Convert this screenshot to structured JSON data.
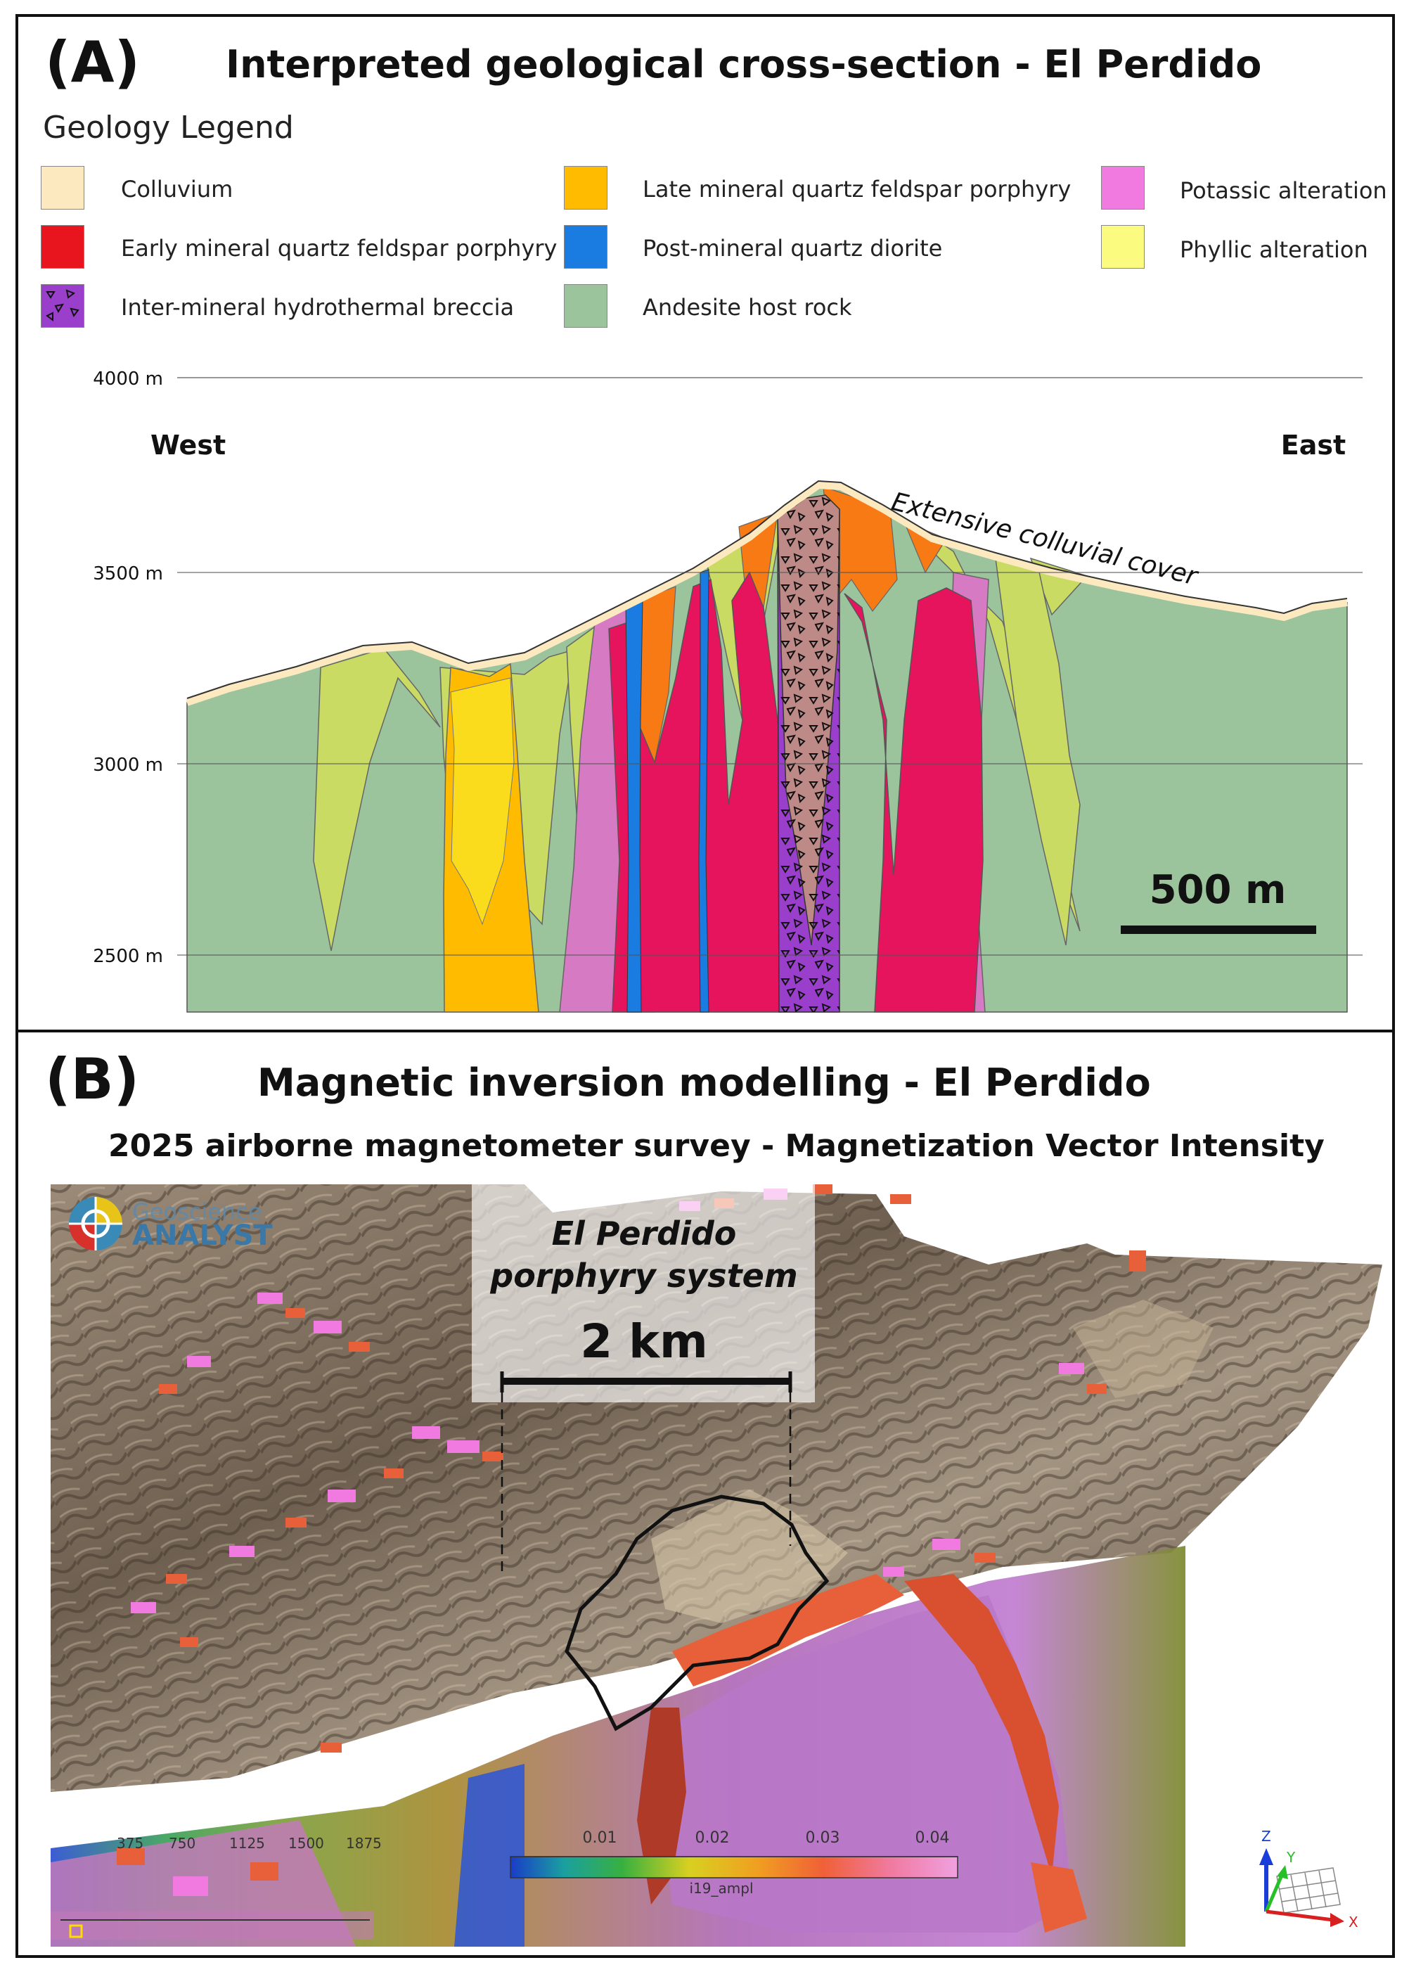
{
  "panel_a": {
    "label": "(A)",
    "title": "Interpreted geological cross-section - El Perdido",
    "legend_title": "Geology Legend",
    "legend": [
      {
        "label": "Colluvium",
        "color": "#fde9c0"
      },
      {
        "label": "Early mineral quartz feldspar porphyry",
        "color": "#e8141e"
      },
      {
        "label": "Inter-mineral hydrothermal breccia",
        "color": "#9a3fcc"
      },
      {
        "label": "Late mineral quartz feldspar porphyry",
        "color": "#ffbb00"
      },
      {
        "label": "Post-mineral quartz diorite",
        "color": "#1a7be0"
      },
      {
        "label": "Andesite host rock",
        "color": "#9cc49c"
      },
      {
        "label": "Potassic alteration",
        "color": "#f07ae0"
      },
      {
        "label": "Phyllic alteration",
        "color": "#fbfb80"
      }
    ],
    "elevation_labels": [
      "4000 m",
      "3500 m",
      "3000 m",
      "2500 m"
    ],
    "west_label": "West",
    "east_label": "East",
    "annotation": "Extensive colluvial cover",
    "scale_bar": "500 m"
  },
  "panel_b": {
    "label": "(B)",
    "title": "Magnetic inversion modelling - El Perdido",
    "subtitle": "2025 airborne magnetometer survey - Magnetization Vector Intensity",
    "logo_text_top": "Geoscience",
    "logo_text_bottom": "ANALYST",
    "callout_line1": "El Perdido",
    "callout_line2": "porphyry system",
    "scale_bar": "2 km",
    "colorbar_ticks": [
      "0.01",
      "0.02",
      "0.03",
      "0.04"
    ],
    "colorbar_label": "i19_ampl",
    "distance_ticks": [
      "375",
      "750",
      "1125",
      "1500",
      "1875"
    ],
    "axis_labels": {
      "z": "Z",
      "y": "Y",
      "x": "X"
    }
  }
}
